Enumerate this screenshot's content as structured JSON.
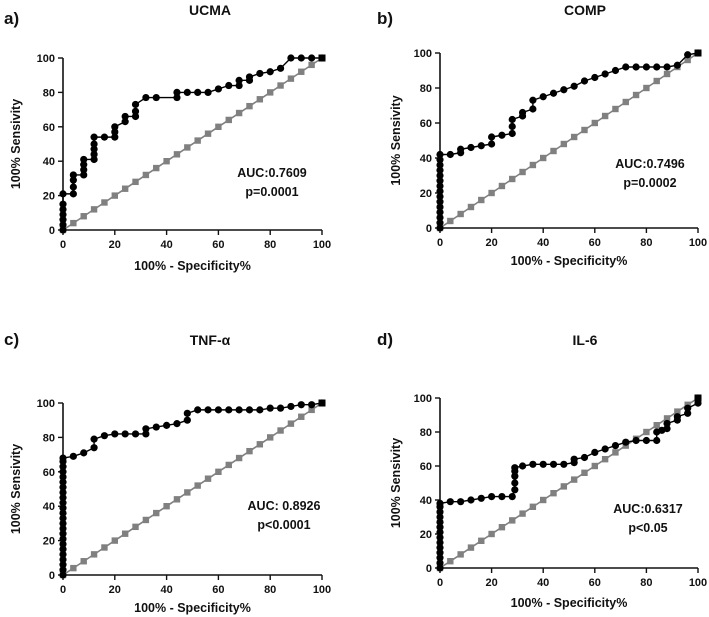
{
  "chart_data": [
    {
      "type": "line",
      "panel_label": "a)",
      "title": "UCMA",
      "xlabel": "100% - Specificity%",
      "ylabel": "100% Sensivity",
      "xlim": [
        0,
        100
      ],
      "ylim": [
        0,
        100
      ],
      "xticks": [
        "0",
        "20",
        "40",
        "60",
        "80",
        "100"
      ],
      "yticks": [
        "0",
        "20",
        "40",
        "60",
        "80",
        "100"
      ],
      "annotations": [
        "AUC:0.7609",
        "p=0.0001"
      ],
      "series": [
        {
          "name": "ROC",
          "x": [
            0,
            0,
            0,
            0,
            0,
            0,
            0,
            4,
            4,
            4,
            4,
            8,
            8,
            8,
            8,
            12,
            12,
            12,
            12,
            12,
            16,
            20,
            20,
            20,
            24,
            24,
            28,
            28,
            28,
            32,
            36,
            44,
            44,
            48,
            52,
            56,
            60,
            64,
            68,
            68,
            72,
            72,
            76,
            80,
            84,
            88,
            92,
            96,
            100
          ],
          "y": [
            0,
            3,
            6,
            9,
            12,
            15,
            21,
            21,
            25,
            29,
            32,
            32,
            35,
            38,
            41,
            41,
            44,
            47,
            50,
            54,
            54,
            54,
            57,
            60,
            63,
            66,
            66,
            69,
            73,
            77,
            77,
            77,
            80,
            80,
            80,
            80,
            82,
            84,
            84,
            87,
            87,
            89,
            91,
            92,
            94,
            100,
            100,
            100,
            100
          ]
        },
        {
          "name": "Reference",
          "x": [
            0,
            4,
            8,
            12,
            16,
            20,
            24,
            28,
            32,
            36,
            40,
            44,
            48,
            52,
            56,
            60,
            64,
            68,
            72,
            76,
            80,
            84,
            88,
            92,
            96,
            100
          ],
          "y": [
            0,
            4,
            8,
            12,
            16,
            20,
            24,
            28,
            32,
            36,
            40,
            44,
            48,
            52,
            56,
            60,
            64,
            68,
            72,
            76,
            80,
            84,
            88,
            92,
            96,
            100
          ]
        }
      ]
    },
    {
      "type": "line",
      "panel_label": "b)",
      "title": "COMP",
      "xlabel": "100% - Specificity%",
      "ylabel": "100% Sensivity",
      "xlim": [
        0,
        100
      ],
      "ylim": [
        0,
        100
      ],
      "xticks": [
        "0",
        "20",
        "40",
        "60",
        "80",
        "100"
      ],
      "yticks": [
        "0",
        "20",
        "40",
        "60",
        "80",
        "100"
      ],
      "annotations": [
        "AUC:0.7496",
        "p=0.0002"
      ],
      "series": [
        {
          "name": "ROC",
          "x": [
            0,
            0,
            0,
            0,
            0,
            0,
            0,
            0,
            0,
            0,
            0,
            0,
            0,
            0,
            0,
            4,
            8,
            8,
            12,
            16,
            20,
            20,
            24,
            28,
            28,
            28,
            32,
            32,
            36,
            36,
            40,
            44,
            48,
            52,
            56,
            60,
            64,
            68,
            72,
            76,
            80,
            84,
            88,
            92,
            96,
            100
          ],
          "y": [
            0,
            3,
            6,
            9,
            12,
            15,
            18,
            21,
            24,
            27,
            30,
            33,
            36,
            39,
            42,
            42,
            43,
            45,
            46,
            47,
            48,
            52,
            53,
            54,
            58,
            62,
            64,
            66,
            68,
            73,
            75,
            77,
            79,
            81,
            84,
            86,
            88,
            90,
            92,
            92,
            92,
            92,
            92,
            93,
            99,
            100
          ]
        },
        {
          "name": "Reference",
          "x": [
            0,
            4,
            8,
            12,
            16,
            20,
            24,
            28,
            32,
            36,
            40,
            44,
            48,
            52,
            56,
            60,
            64,
            68,
            72,
            76,
            80,
            84,
            88,
            92,
            96,
            100
          ],
          "y": [
            0,
            4,
            8,
            12,
            16,
            20,
            24,
            28,
            32,
            36,
            40,
            44,
            48,
            52,
            56,
            60,
            64,
            68,
            72,
            76,
            80,
            84,
            88,
            92,
            96,
            100
          ]
        }
      ]
    },
    {
      "type": "line",
      "panel_label": "c)",
      "title": "TNF-α",
      "xlabel": "100% - Specificity%",
      "ylabel": "100% Sensivity",
      "xlim": [
        0,
        100
      ],
      "ylim": [
        0,
        100
      ],
      "xticks": [
        "0",
        "20",
        "40",
        "60",
        "80",
        "100"
      ],
      "yticks": [
        "0",
        "20",
        "40",
        "60",
        "80",
        "100"
      ],
      "annotations": [
        "AUC: 0.8926",
        "p<0.0001"
      ],
      "series": [
        {
          "name": "ROC",
          "x": [
            0,
            0,
            0,
            0,
            0,
            0,
            0,
            0,
            0,
            0,
            0,
            0,
            0,
            0,
            0,
            0,
            0,
            0,
            0,
            0,
            0,
            0,
            0,
            0,
            4,
            8,
            12,
            12,
            16,
            20,
            24,
            28,
            32,
            32,
            36,
            40,
            44,
            48,
            48,
            52,
            56,
            60,
            64,
            68,
            72,
            76,
            80,
            84,
            88,
            92,
            96,
            100
          ],
          "y": [
            0,
            3,
            6,
            9,
            12,
            15,
            18,
            21,
            24,
            27,
            30,
            33,
            36,
            39,
            42,
            45,
            48,
            51,
            54,
            57,
            60,
            63,
            66,
            68,
            69,
            71,
            74,
            79,
            81,
            82,
            82,
            82,
            82,
            85,
            86,
            87,
            88,
            90,
            94,
            96,
            96,
            96,
            96,
            96,
            96,
            96,
            97,
            97,
            98,
            99,
            99,
            100
          ]
        },
        {
          "name": "Reference",
          "x": [
            0,
            4,
            8,
            12,
            16,
            20,
            24,
            28,
            32,
            36,
            40,
            44,
            48,
            52,
            56,
            60,
            64,
            68,
            72,
            76,
            80,
            84,
            88,
            92,
            96,
            100
          ],
          "y": [
            0,
            4,
            8,
            12,
            16,
            20,
            24,
            28,
            32,
            36,
            40,
            44,
            48,
            52,
            56,
            60,
            64,
            68,
            72,
            76,
            80,
            84,
            88,
            92,
            96,
            100
          ]
        }
      ]
    },
    {
      "type": "line",
      "panel_label": "d)",
      "title": "IL-6",
      "xlabel": "100% - Specificity%",
      "ylabel": "100% Sensivity",
      "xlim": [
        0,
        100
      ],
      "ylim": [
        0,
        100
      ],
      "xticks": [
        "0",
        "20",
        "40",
        "60",
        "80",
        "100"
      ],
      "yticks": [
        "0",
        "20",
        "40",
        "60",
        "80",
        "100"
      ],
      "annotations": [
        "AUC:0.6317",
        "p<0.05"
      ],
      "series": [
        {
          "name": "ROC",
          "x": [
            0,
            0,
            0,
            0,
            0,
            0,
            0,
            0,
            0,
            0,
            0,
            0,
            0,
            0,
            4,
            8,
            12,
            16,
            20,
            24,
            28,
            29,
            29,
            29,
            29,
            29,
            32,
            36,
            40,
            44,
            48,
            52,
            52,
            56,
            60,
            64,
            68,
            72,
            76,
            80,
            84,
            84,
            86,
            88,
            88,
            92,
            92,
            96,
            96,
            100,
            100
          ],
          "y": [
            0,
            3,
            6,
            9,
            12,
            15,
            18,
            21,
            24,
            27,
            30,
            33,
            36,
            38,
            39,
            39,
            40,
            41,
            42,
            42,
            42,
            46,
            50,
            54,
            57,
            59,
            60,
            61,
            61,
            61,
            61,
            62,
            64,
            65,
            68,
            70,
            72,
            74,
            75,
            75,
            75,
            80,
            81,
            82,
            85,
            87,
            89,
            91,
            94,
            97,
            100
          ]
        },
        {
          "name": "Reference",
          "x": [
            0,
            4,
            8,
            12,
            16,
            20,
            24,
            28,
            32,
            36,
            40,
            44,
            48,
            52,
            56,
            60,
            64,
            68,
            72,
            76,
            80,
            84,
            88,
            92,
            96,
            100
          ],
          "y": [
            0,
            4,
            8,
            12,
            16,
            20,
            24,
            28,
            32,
            36,
            40,
            44,
            48,
            52,
            56,
            60,
            64,
            68,
            72,
            76,
            80,
            84,
            88,
            92,
            96,
            100
          ]
        }
      ]
    }
  ],
  "colors": {
    "roc": "#000000",
    "reference": "#808080",
    "axis": "#111111"
  }
}
